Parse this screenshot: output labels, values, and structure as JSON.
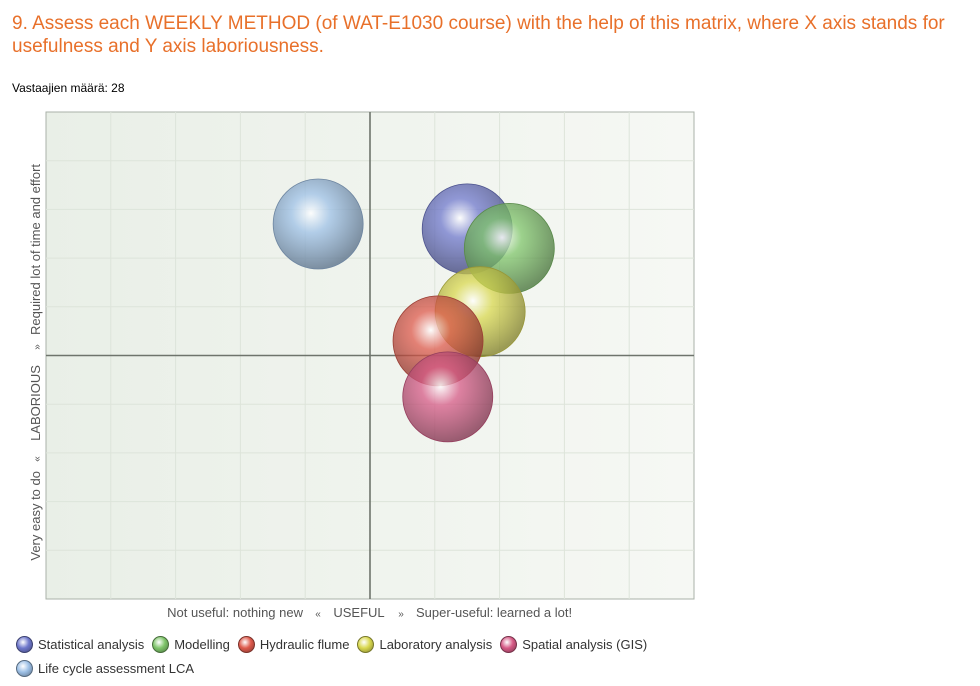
{
  "question": {
    "title": "9. Assess each WEEKLY METHOD (of WAT-E1030 course) with the help of this matrix, where X axis stands for usefulness and Y axis laboriousness.",
    "respondents_label": "Vastaajien määrä: 28"
  },
  "chart_data": {
    "type": "scatter",
    "title": "",
    "x_axis_label": {
      "low": "Not useful: nothing new",
      "arrow_left": "«",
      "center": "USEFUL",
      "arrow_right": "»",
      "high": "Super-useful: learned a lot!"
    },
    "y_axis_label": {
      "low": "Very easy to do",
      "arrow_left": "«",
      "center": "LABORIOUS",
      "arrow_right": "»",
      "high": "Required lot of time and effort"
    },
    "xlim": [
      -1,
      1
    ],
    "ylim": [
      -1,
      1
    ],
    "grid": true,
    "quadrant_divider": {
      "x": 0,
      "y": 0
    },
    "series": [
      {
        "name": "Life cycle assessment LCA",
        "x": -0.16,
        "y": 0.54,
        "color": "#9dc0e6"
      },
      {
        "name": "Statistical analysis",
        "x": 0.3,
        "y": 0.52,
        "color": "#6f78cc"
      },
      {
        "name": "Modelling",
        "x": 0.43,
        "y": 0.44,
        "color": "#7fc56a"
      },
      {
        "name": "Laboratory analysis",
        "x": 0.34,
        "y": 0.18,
        "color": "#d9d84f"
      },
      {
        "name": "Hydraulic flume",
        "x": 0.21,
        "y": 0.06,
        "color": "#de5a4c"
      },
      {
        "name": "Spatial analysis (GIS)",
        "x": 0.24,
        "y": -0.17,
        "color": "#d65a86"
      }
    ],
    "legend_order": [
      "Statistical analysis",
      "Modelling",
      "Hydraulic flume",
      "Laboratory analysis",
      "Spatial analysis (GIS)",
      "Life cycle assessment LCA"
    ],
    "legend_position": "bottom"
  }
}
